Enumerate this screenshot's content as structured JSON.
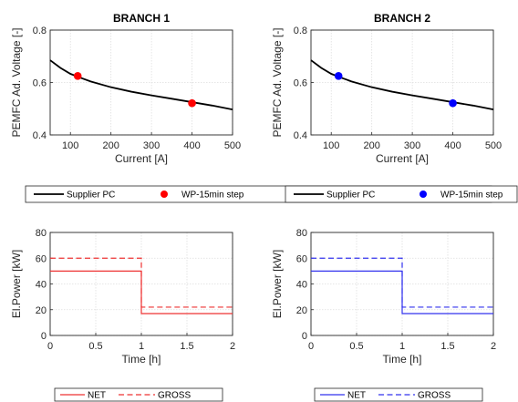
{
  "chart_data": [
    {
      "type": "line",
      "title": "BRANCH 1",
      "xlabel": "Current [A]",
      "ylabel": "PEMFC Ad. Voltage [-]",
      "xlim": [
        50,
        500
      ],
      "ylim": [
        0.4,
        0.8
      ],
      "xticks": [
        "100",
        "200",
        "300",
        "400",
        "500"
      ],
      "yticks": [
        "0.4",
        "0.6",
        "0.8"
      ],
      "grid": true,
      "legend_position": "below",
      "marker_color": "#ff0000",
      "series": [
        {
          "name": "Supplier PC",
          "kind": "line",
          "color": "#000000",
          "x": [
            50,
            75,
            100,
            125,
            150,
            200,
            250,
            300,
            350,
            400,
            450,
            500
          ],
          "y": [
            0.685,
            0.656,
            0.633,
            0.618,
            0.604,
            0.582,
            0.565,
            0.551,
            0.538,
            0.525,
            0.512,
            0.497
          ]
        },
        {
          "name": "WP-15min step",
          "kind": "marker",
          "color": "#ff0000",
          "x": [
            118,
            400
          ],
          "y": [
            0.625,
            0.521
          ]
        }
      ]
    },
    {
      "type": "line",
      "title": "BRANCH 2",
      "xlabel": "Current [A]",
      "ylabel": "PEMFC Ad. Voltage [-]",
      "xlim": [
        50,
        500
      ],
      "ylim": [
        0.4,
        0.8
      ],
      "xticks": [
        "100",
        "200",
        "300",
        "400",
        "500"
      ],
      "yticks": [
        "0.4",
        "0.6",
        "0.8"
      ],
      "grid": true,
      "legend_position": "below",
      "marker_color": "#0000ff",
      "series": [
        {
          "name": "Supplier PC",
          "kind": "line",
          "color": "#000000",
          "x": [
            50,
            75,
            100,
            125,
            150,
            200,
            250,
            300,
            350,
            400,
            450,
            500
          ],
          "y": [
            0.685,
            0.656,
            0.633,
            0.618,
            0.604,
            0.582,
            0.565,
            0.551,
            0.538,
            0.525,
            0.512,
            0.497
          ]
        },
        {
          "name": "WP-15min step",
          "kind": "marker",
          "color": "#0000ff",
          "x": [
            118,
            400
          ],
          "y": [
            0.625,
            0.521
          ]
        }
      ]
    },
    {
      "type": "line",
      "title": "",
      "xlabel": "Time [h]",
      "ylabel": "El.Power [kW]",
      "xlim": [
        0,
        2
      ],
      "ylim": [
        0,
        80
      ],
      "xticks": [
        "0",
        "0.5",
        "1",
        "1.5",
        "2"
      ],
      "yticks": [
        "0",
        "20",
        "40",
        "60",
        "80"
      ],
      "grid": true,
      "legend_position": "below",
      "series": [
        {
          "name": "NET",
          "kind": "line",
          "dash": false,
          "color": "#ee3333",
          "x": [
            0,
            1,
            1,
            2
          ],
          "y": [
            50,
            50,
            17,
            17
          ]
        },
        {
          "name": "GROSS",
          "kind": "line",
          "dash": true,
          "color": "#ee3333",
          "x": [
            0,
            1,
            1,
            2
          ],
          "y": [
            60,
            60,
            22,
            22
          ]
        }
      ]
    },
    {
      "type": "line",
      "title": "",
      "xlabel": "Time [h]",
      "ylabel": "El.Power [kW]",
      "xlim": [
        0,
        2
      ],
      "ylim": [
        0,
        80
      ],
      "xticks": [
        "0",
        "0.5",
        "1",
        "1.5",
        "2"
      ],
      "yticks": [
        "0",
        "20",
        "40",
        "60",
        "80"
      ],
      "grid": true,
      "legend_position": "below",
      "series": [
        {
          "name": "NET",
          "kind": "line",
          "dash": false,
          "color": "#3333ee",
          "x": [
            0,
            1,
            1,
            2
          ],
          "y": [
            50,
            50,
            17,
            17
          ]
        },
        {
          "name": "GROSS",
          "kind": "line",
          "dash": true,
          "color": "#3333ee",
          "x": [
            0,
            1,
            1,
            2
          ],
          "y": [
            60,
            60,
            22,
            22
          ]
        }
      ]
    }
  ]
}
